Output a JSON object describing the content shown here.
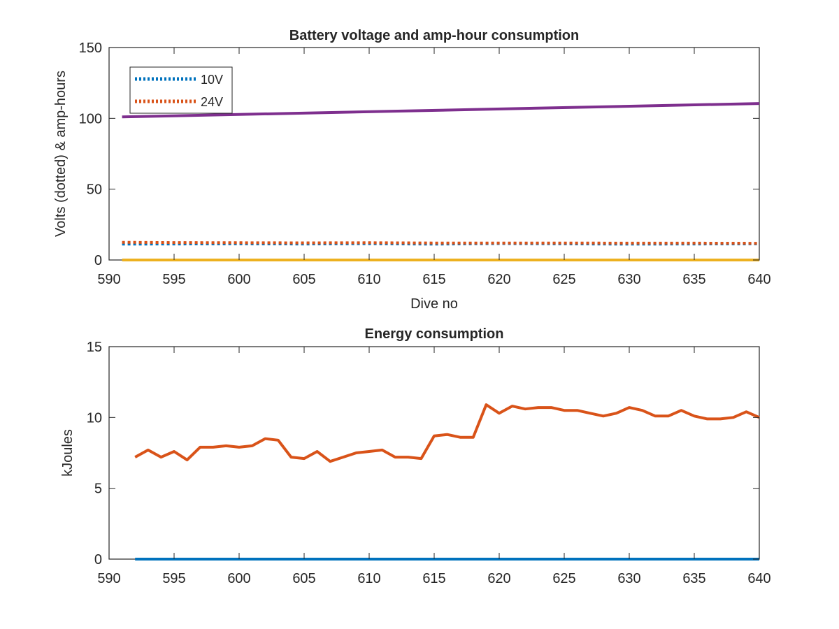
{
  "colors": {
    "blue": "#0072BD",
    "orange": "#D95319",
    "yellow": "#EDB120",
    "purple": "#7E2F8E"
  },
  "chart_data": [
    {
      "type": "line",
      "title": "Battery voltage and amp-hour consumption",
      "xlabel": "Dive no",
      "ylabel": "Volts (dotted) & amp-hours",
      "xlim": [
        590,
        640
      ],
      "ylim": [
        0,
        150
      ],
      "xticks": [
        "590",
        "595",
        "600",
        "605",
        "610",
        "615",
        "620",
        "625",
        "630",
        "635",
        "640"
      ],
      "yticks": [
        "0",
        "50",
        "100",
        "150"
      ],
      "legend": {
        "placement": "top-left",
        "entries": [
          "10V",
          "24V"
        ]
      },
      "series": [
        {
          "name": "10V",
          "color": "#0072BD",
          "style": "dotted",
          "x": [
            591,
            595,
            600,
            605,
            610,
            615,
            620,
            625,
            630,
            635,
            640
          ],
          "y": [
            11.2,
            11.3,
            11.4,
            11.3,
            11.5,
            11.2,
            11.6,
            11.4,
            11.2,
            11.3,
            11.4
          ]
        },
        {
          "name": "24V",
          "color": "#D95319",
          "style": "dotted",
          "x": [
            591,
            595,
            600,
            605,
            610,
            615,
            620,
            625,
            630,
            635,
            640
          ],
          "y": [
            12.5,
            12.3,
            12.2,
            12.1,
            12.2,
            12.0,
            12.0,
            12.0,
            11.9,
            11.9,
            11.8
          ]
        },
        {
          "color": "#7E2F8E",
          "style": "solid",
          "x": [
            591,
            640
          ],
          "y": [
            101,
            110.5
          ]
        },
        {
          "color": "#EDB120",
          "style": "solid",
          "x": [
            591,
            640
          ],
          "y": [
            0,
            0
          ]
        }
      ]
    },
    {
      "type": "line",
      "title": "Energy consumption",
      "xlabel": "",
      "ylabel": "kJoules",
      "xlim": [
        590,
        640
      ],
      "ylim": [
        0,
        15
      ],
      "xticks": [
        "590",
        "595",
        "600",
        "605",
        "610",
        "615",
        "620",
        "625",
        "630",
        "635",
        "640"
      ],
      "yticks": [
        "0",
        "5",
        "10",
        "15"
      ],
      "series": [
        {
          "color": "#D95319",
          "style": "solid",
          "x": [
            592,
            593,
            594,
            595,
            596,
            597,
            598,
            599,
            600,
            601,
            602,
            603,
            604,
            605,
            606,
            607,
            608,
            609,
            610,
            611,
            612,
            613,
            614,
            615,
            616,
            617,
            618,
            619,
            620,
            621,
            622,
            623,
            624,
            625,
            626,
            627,
            628,
            629,
            630,
            631,
            632,
            633,
            634,
            635,
            636,
            637,
            638,
            639,
            640
          ],
          "y": [
            7.2,
            7.7,
            7.2,
            7.6,
            7.0,
            7.9,
            7.9,
            8.0,
            7.9,
            8.0,
            8.5,
            8.4,
            7.2,
            7.1,
            7.6,
            6.9,
            7.2,
            7.5,
            7.6,
            7.7,
            7.2,
            7.2,
            7.1,
            8.7,
            8.8,
            8.6,
            8.6,
            10.9,
            10.3,
            10.8,
            10.6,
            10.7,
            10.7,
            10.5,
            10.5,
            10.3,
            10.1,
            10.3,
            10.7,
            10.5,
            10.1,
            10.1,
            10.5,
            10.1,
            9.9,
            9.9,
            10.0,
            10.4,
            10.0
          ]
        },
        {
          "color": "#0072BD",
          "style": "solid",
          "x": [
            592,
            640
          ],
          "y": [
            0,
            0
          ]
        }
      ]
    }
  ]
}
